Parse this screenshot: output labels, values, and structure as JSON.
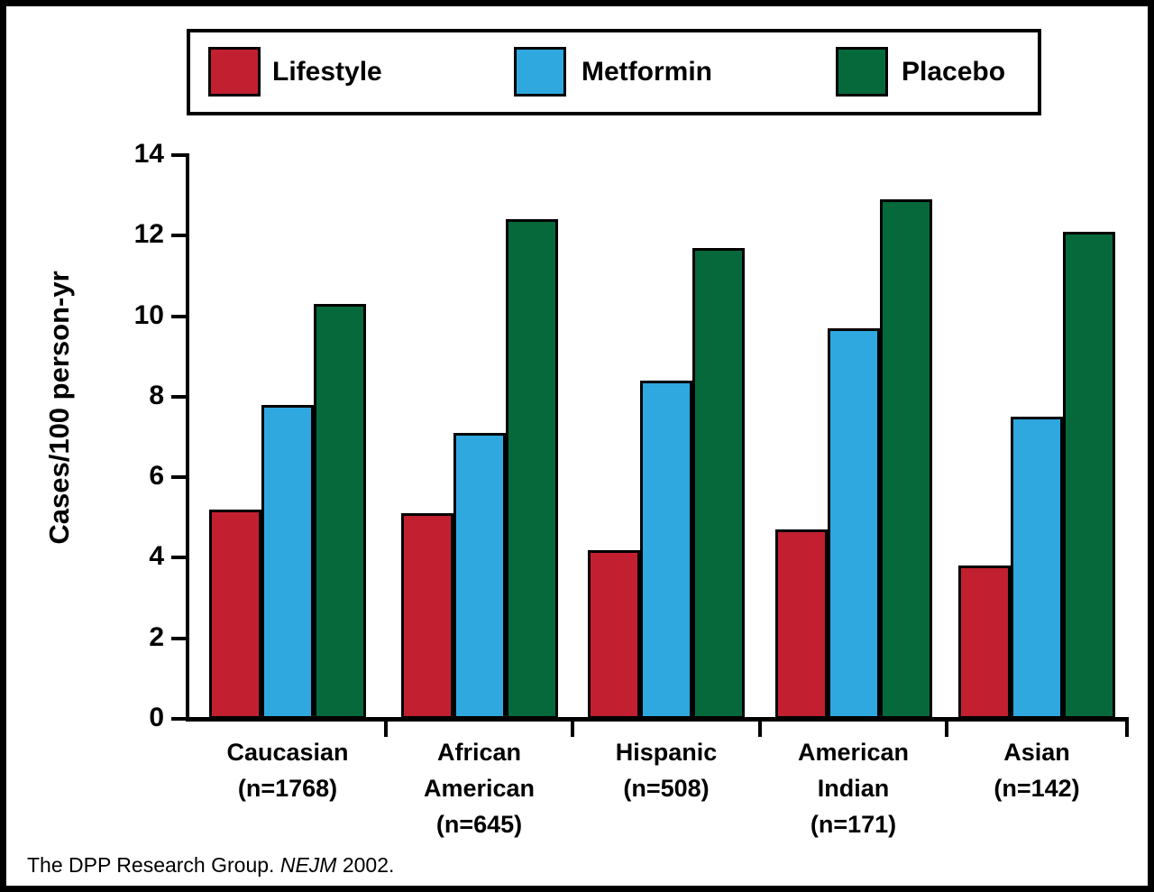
{
  "legend": {
    "items": [
      {
        "label": "Lifestyle",
        "color": "#C22030",
        "swatch_icon": "red-square-swatch"
      },
      {
        "label": "Metformin",
        "color": "#2FA8E0",
        "swatch_icon": "blue-square-swatch"
      },
      {
        "label": "Placebo",
        "color": "#05693C",
        "swatch_icon": "green-square-swatch"
      }
    ]
  },
  "footer": {
    "prefix": "The DPP Research Group. ",
    "journal": "NEJM",
    "suffix": " 2002."
  },
  "chart_data": {
    "type": "bar",
    "title": "",
    "xlabel": "",
    "ylabel": "Cases/100 person-yr",
    "ylim": [
      0,
      14
    ],
    "yticks": [
      0,
      2,
      4,
      6,
      8,
      10,
      12,
      14
    ],
    "grid": false,
    "legend_position": "top",
    "categories": [
      {
        "lines": [
          "Caucasian",
          "(n=1768)"
        ],
        "group": "Caucasian",
        "n": 1768
      },
      {
        "lines": [
          "African",
          "American",
          "(n=645)"
        ],
        "group": "African American",
        "n": 645
      },
      {
        "lines": [
          "Hispanic",
          "(n=508)"
        ],
        "group": "Hispanic",
        "n": 508
      },
      {
        "lines": [
          "American",
          "Indian",
          "(n=171)"
        ],
        "group": "American Indian",
        "n": 171
      },
      {
        "lines": [
          "Asian",
          "(n=142)"
        ],
        "group": "Asian",
        "n": 142
      }
    ],
    "series": [
      {
        "name": "Lifestyle",
        "color": "#C22030",
        "values": [
          5.2,
          5.1,
          4.2,
          4.7,
          3.8
        ]
      },
      {
        "name": "Metformin",
        "color": "#2FA8E0",
        "values": [
          7.8,
          7.1,
          8.4,
          9.7,
          7.5
        ]
      },
      {
        "name": "Placebo",
        "color": "#05693C",
        "values": [
          10.3,
          12.4,
          11.7,
          12.9,
          12.1
        ]
      }
    ]
  }
}
